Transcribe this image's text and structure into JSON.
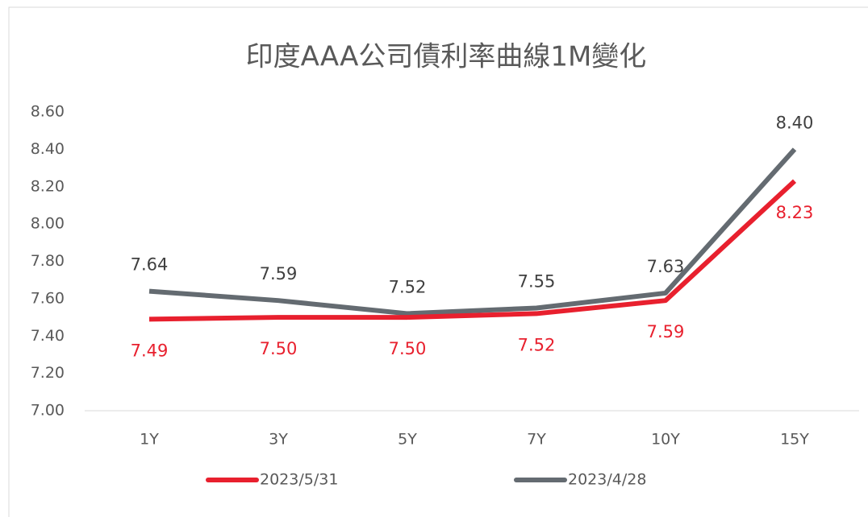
{
  "chart_data": {
    "type": "line",
    "title": "印度AAA公司債利率曲線1M變化",
    "categories": [
      "1Y",
      "3Y",
      "5Y",
      "7Y",
      "10Y",
      "15Y"
    ],
    "series": [
      {
        "name": "2023/5/31",
        "color": "#e8202e",
        "values": [
          7.49,
          7.5,
          7.5,
          7.52,
          7.59,
          8.23
        ],
        "value_labels": [
          "7.49",
          "7.50",
          "7.50",
          "7.52",
          "7.59",
          "8.23"
        ]
      },
      {
        "name": "2023/4/28",
        "color": "#646b71",
        "values": [
          7.64,
          7.59,
          7.52,
          7.55,
          7.63,
          8.4
        ],
        "value_labels": [
          "7.64",
          "7.59",
          "7.52",
          "7.55",
          "7.63",
          "8.40"
        ]
      }
    ],
    "ylim": [
      7.0,
      8.6
    ],
    "yticks": [
      {
        "value": 7,
        "label": "7.00"
      },
      {
        "value": 7.2,
        "label": "7.20"
      },
      {
        "value": 7.4,
        "label": "7.40"
      },
      {
        "value": 7.6,
        "label": "7.60"
      },
      {
        "value": 7.8,
        "label": "7.80"
      },
      {
        "value": 8,
        "label": "8.00"
      },
      {
        "value": 8.2,
        "label": "8.20"
      },
      {
        "value": 8.4,
        "label": "8.40"
      },
      {
        "value": 8.6,
        "label": "8.60"
      }
    ]
  }
}
